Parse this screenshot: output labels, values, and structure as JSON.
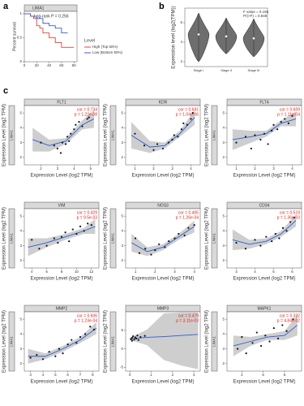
{
  "chart_data": [
    {
      "type": "survival",
      "panel": "a",
      "title": "LIMA1",
      "annotation": "Log-rank P = 0.256",
      "ylabel": "Percent survival",
      "legend_title": "Level",
      "xlim": [
        0,
        85
      ],
      "ylim": [
        0,
        1.05
      ],
      "xticks": [
        0,
        20,
        40,
        60,
        80
      ],
      "yticks": [
        0,
        0.5,
        1
      ],
      "series": [
        {
          "name": "High (Top 50%)",
          "color": "#e0453a",
          "x": [
            0,
            10,
            15,
            20,
            25,
            30,
            40,
            50,
            60,
            80
          ],
          "values": [
            1,
            0.95,
            0.9,
            0.75,
            0.7,
            0.6,
            0.5,
            0.4,
            0.3,
            0.3
          ]
        },
        {
          "name": "Low (Bottom 50%)",
          "color": "#3b5bd6",
          "x": [
            0,
            10,
            20,
            30,
            40,
            50,
            60,
            70
          ],
          "values": [
            1,
            0.95,
            0.9,
            0.8,
            0.75,
            0.7,
            0.6,
            0.6
          ]
        }
      ]
    },
    {
      "type": "violin",
      "panel": "b",
      "ylabel": "Expression level (log2(TPM))",
      "annotation": [
        "F value = 0.165",
        "Pr(>F) = 0.848"
      ],
      "categories": [
        "Stage I",
        "Stage II",
        "Stage III"
      ],
      "values": [
        4.8,
        4.6,
        4.4
      ],
      "min": [
        2.0,
        2.8,
        2.5
      ],
      "max": [
        7.0,
        6.5,
        6.4
      ],
      "color": "#6e6e6e",
      "ylim": [
        1.5,
        7.5
      ],
      "yticks": [
        2,
        4,
        6
      ]
    },
    {
      "type": "scatter",
      "panel": "c",
      "title": "FLT1",
      "strip": "LIMA1",
      "cor": "cor = 0.734",
      "p": "p = 1.22e-08",
      "xlabel": "Expression Level (log2 TPM)",
      "ylabel": "Expression Level (log2 TPM)",
      "xlim": [
        1,
        5.5
      ],
      "ylim": [
        1.5,
        5.5
      ],
      "xticks": [
        2,
        3,
        4,
        5
      ],
      "yticks": [
        2,
        3,
        4,
        5
      ],
      "x": [
        2.0,
        2.8,
        3.0,
        3.2,
        3.3,
        3.5,
        3.6,
        3.7,
        3.8,
        4.0,
        4.1,
        4.3,
        4.5,
        4.8,
        4.9
      ],
      "y": [
        3.0,
        2.8,
        2.6,
        2.3,
        3.0,
        2.9,
        3.4,
        3.1,
        3.6,
        3.9,
        4.2,
        4.4,
        4.1,
        4.6,
        4.7
      ],
      "fit_x": [
        1.5,
        2.5,
        3.5,
        4.5,
        5.2
      ],
      "fit_y": [
        3.2,
        2.8,
        3.1,
        4.2,
        4.6
      ],
      "fit_lower": [
        2.4,
        2.4,
        2.9,
        3.9,
        4.0
      ],
      "fit_upper": [
        4.0,
        3.2,
        3.3,
        4.5,
        5.2
      ]
    },
    {
      "type": "scatter",
      "title": "KDR",
      "strip": "LIMA1",
      "cor": "cor = 0.691",
      "p": "p = 1.04e-06",
      "xlabel": "Expression Level (log2 TPM)",
      "ylabel": "Expression Level (log2 TPM)",
      "xlim": [
        0.5,
        4.5
      ],
      "ylim": [
        1.5,
        5.5
      ],
      "xticks": [
        1,
        2,
        3,
        4
      ],
      "yticks": [
        2,
        3,
        4,
        5
      ],
      "x": [
        1.0,
        1.5,
        2.0,
        2.2,
        2.5,
        2.8,
        3.0,
        3.1,
        3.3,
        3.5,
        3.6,
        3.8,
        4.0,
        4.1
      ],
      "y": [
        3.6,
        2.8,
        2.5,
        2.9,
        2.6,
        3.0,
        3.2,
        3.5,
        3.4,
        3.9,
        4.3,
        4.2,
        4.6,
        5.0
      ],
      "fit_x": [
        0.8,
        1.8,
        2.6,
        3.4,
        4.2
      ],
      "fit_y": [
        3.5,
        2.7,
        2.8,
        3.6,
        4.7
      ],
      "fit_lower": [
        2.6,
        2.3,
        2.6,
        3.4,
        4.2
      ],
      "fit_upper": [
        4.4,
        3.1,
        3.0,
        3.8,
        5.2
      ]
    },
    {
      "type": "scatter",
      "title": "FLT4",
      "strip": "LIMA1",
      "cor": "cor = 0.609",
      "p": "p = 1.11e-04",
      "xlabel": "Expression Level (log2 TPM)",
      "ylabel": "Expression Level (log2 TPM)",
      "xlim": [
        0.5,
        4.5
      ],
      "ylim": [
        1.5,
        5.5
      ],
      "xticks": [
        1,
        2,
        3,
        4
      ],
      "yticks": [
        2,
        3,
        4,
        5
      ],
      "x": [
        1.0,
        1.5,
        1.8,
        2.0,
        2.3,
        2.5,
        2.7,
        2.9,
        3.0,
        3.2,
        3.4,
        3.6,
        3.8,
        4.0
      ],
      "y": [
        3.0,
        3.4,
        2.6,
        3.5,
        3.2,
        3.6,
        2.9,
        3.8,
        4.2,
        3.9,
        4.4,
        4.6,
        4.3,
        4.8
      ],
      "fit_x": [
        0.8,
        1.8,
        2.6,
        3.4,
        4.2
      ],
      "fit_y": [
        3.2,
        3.4,
        3.6,
        4.3,
        4.6
      ],
      "fit_lower": [
        2.5,
        3.0,
        3.4,
        4.1,
        4.1
      ],
      "fit_upper": [
        3.9,
        3.8,
        3.8,
        4.5,
        5.1
      ]
    },
    {
      "type": "scatter",
      "title": "VIM",
      "strip": "LIMA1",
      "cor": "cor = 0.429",
      "p": "p = 9.5e-03",
      "xlabel": "Expression Level (log2 TPM)",
      "ylabel": "Expression Level (log2 TPM)",
      "xlim": [
        3,
        13
      ],
      "ylim": [
        1.5,
        5.5
      ],
      "xticks": [
        4,
        6,
        8,
        10,
        12
      ],
      "yticks": [
        2,
        3,
        4,
        5
      ],
      "x": [
        4,
        5,
        6,
        7,
        7.5,
        8,
        8.5,
        9,
        9.5,
        10,
        10.5,
        11,
        11.5,
        12
      ],
      "y": [
        3.4,
        2.8,
        3.0,
        3.5,
        3.2,
        3.6,
        3.9,
        3.3,
        4.1,
        3.8,
        4.3,
        4.0,
        4.5,
        4.4
      ],
      "fit_x": [
        3.5,
        6,
        8.5,
        11,
        12.5
      ],
      "fit_y": [
        2.9,
        3.2,
        3.6,
        4.0,
        4.3
      ],
      "fit_lower": [
        2.3,
        2.9,
        3.4,
        3.8,
        3.8
      ],
      "fit_upper": [
        3.5,
        3.5,
        3.8,
        4.2,
        4.8
      ]
    },
    {
      "type": "scatter",
      "title": "NOS3",
      "strip": "LIMA1",
      "cor": "cor = 0.405",
      "p": "p = 1.26e-04",
      "xlabel": "Expression Level (log2 TPM)",
      "ylabel": "Expression Level (log2 TPM)",
      "xlim": [
        0.5,
        4.3
      ],
      "ylim": [
        1.5,
        5.5
      ],
      "xticks": [
        1,
        2,
        3,
        4
      ],
      "yticks": [
        2,
        3,
        4,
        5
      ],
      "x": [
        1.0,
        1.2,
        1.5,
        1.8,
        2.0,
        2.2,
        2.5,
        2.7,
        3.0,
        3.2,
        3.5,
        3.7,
        4.0
      ],
      "y": [
        3.5,
        2.5,
        2.8,
        2.4,
        2.7,
        3.1,
        2.9,
        3.3,
        3.5,
        3.8,
        3.7,
        4.2,
        4.4
      ],
      "fit_x": [
        0.8,
        1.6,
        2.4,
        3.2,
        4.0
      ],
      "fit_y": [
        3.2,
        2.6,
        2.9,
        3.6,
        4.3
      ],
      "fit_lower": [
        2.6,
        2.3,
        2.7,
        3.4,
        3.9
      ],
      "fit_upper": [
        3.8,
        2.9,
        3.1,
        3.8,
        4.7
      ]
    },
    {
      "type": "scatter",
      "title": "CD34",
      "strip": "LIMA1",
      "cor": "cor = 0.519",
      "p": "p = 1.36e-03",
      "xlabel": "Expression Level (log2 TPM)",
      "ylabel": "Expression Level (log2 TPM)",
      "xlim": [
        2.5,
        6.5
      ],
      "ylim": [
        1.5,
        5.5
      ],
      "xticks": [
        3,
        4,
        5,
        6
      ],
      "yticks": [
        2,
        3,
        4,
        5
      ],
      "x": [
        3.0,
        3.5,
        4.0,
        4.3,
        4.6,
        4.9,
        5.1,
        5.3,
        5.5,
        5.7,
        5.9,
        6.1
      ],
      "y": [
        3.2,
        2.8,
        3.4,
        3.0,
        3.6,
        3.3,
        3.8,
        3.5,
        4.2,
        4.0,
        4.6,
        4.9
      ],
      "fit_x": [
        2.8,
        3.7,
        4.6,
        5.4,
        6.2
      ],
      "fit_y": [
        3.4,
        3.1,
        3.3,
        3.8,
        4.7
      ],
      "fit_lower": [
        2.7,
        2.8,
        3.1,
        3.6,
        4.3
      ],
      "fit_upper": [
        4.1,
        3.4,
        3.5,
        4.0,
        5.1
      ]
    },
    {
      "type": "scatter",
      "title": "MMP2",
      "strip": "LIMA1",
      "cor": "cor = 0.606",
      "p": "p = 1.23e-04",
      "xlabel": "Expression Level (log2 TPM)",
      "ylabel": "Expression Level (log2 TPM)",
      "xlim": [
        2.5,
        8.5
      ],
      "ylim": [
        1.5,
        5.5
      ],
      "xticks": [
        3,
        4,
        5,
        6,
        7,
        8
      ],
      "yticks": [
        2,
        3,
        4,
        5
      ],
      "x": [
        3.0,
        3.5,
        4.0,
        4.5,
        5.0,
        5.3,
        5.6,
        6.0,
        6.3,
        6.7,
        7.0,
        7.4,
        7.8,
        8.1
      ],
      "y": [
        2.4,
        2.6,
        2.3,
        2.8,
        2.5,
        3.0,
        2.7,
        3.3,
        3.6,
        3.4,
        3.8,
        4.0,
        4.5,
        4.3
      ],
      "fit_x": [
        2.8,
        4.2,
        5.6,
        7.0,
        8.3
      ],
      "fit_y": [
        2.5,
        2.5,
        3.0,
        3.6,
        4.4
      ],
      "fit_lower": [
        2.0,
        2.3,
        2.8,
        3.4,
        4.0
      ],
      "fit_upper": [
        3.0,
        2.7,
        3.2,
        3.8,
        4.8
      ]
    },
    {
      "type": "scatter",
      "title": "MMP3",
      "strip": "LIMA1",
      "cor": "cor = 0.479",
      "p": "p = 3.11e-03",
      "xlabel": "Expression Level (log2 TPM)",
      "ylabel": "Expression Level (log2 TPM)",
      "xlim": [
        -0.2,
        3.3
      ],
      "ylim": [
        -6,
        10
      ],
      "xticks": [
        0,
        1,
        2,
        3
      ],
      "yticks": [
        -5,
        0,
        5
      ],
      "x": [
        0.05,
        0.1,
        0.1,
        0.15,
        0.2,
        0.25,
        0.3,
        0.35,
        0.4,
        0.5,
        0.7
      ],
      "y": [
        2.6,
        3.0,
        2.2,
        3.4,
        2.5,
        3.1,
        2.8,
        3.6,
        2.4,
        3.2,
        3.5
      ],
      "fit_x": [
        0,
        0.8,
        1.6,
        2.4,
        3.2
      ],
      "fit_y": [
        2.7,
        3.1,
        3.3,
        3.6,
        3.9
      ],
      "fit_lower": [
        2.4,
        1.0,
        -3.0,
        -4.5,
        -5.5
      ],
      "fit_upper": [
        3.0,
        5.2,
        9.6,
        9.8,
        9.8
      ]
    },
    {
      "type": "scatter",
      "title": "MAPK1",
      "strip": "LIMA1",
      "cor": "cor = 0.332",
      "p": "p = 4.84e-02",
      "xlabel": "Expression Level (log2 TPM)",
      "ylabel": "Expression Level (log2 TPM)",
      "xlim": [
        3.3,
        6.8
      ],
      "ylim": [
        1.5,
        5.5
      ],
      "xticks": [
        4,
        5,
        6
      ],
      "yticks": [
        2,
        3,
        4,
        5
      ],
      "x": [
        3.8,
        4.0,
        4.2,
        4.5,
        4.7,
        4.9,
        5.1,
        5.3,
        5.5,
        5.7,
        5.9,
        6.1,
        6.4
      ],
      "y": [
        3.0,
        3.8,
        2.7,
        3.4,
        4.1,
        3.2,
        3.9,
        3.5,
        4.4,
        3.7,
        4.6,
        4.2,
        5.0
      ],
      "fit_x": [
        3.6,
        4.4,
        5.2,
        6.0,
        6.6
      ],
      "fit_y": [
        3.2,
        3.5,
        3.8,
        3.9,
        4.6
      ],
      "fit_lower": [
        2.5,
        3.2,
        3.6,
        3.6,
        3.9
      ],
      "fit_upper": [
        3.9,
        3.8,
        4.0,
        4.2,
        5.3
      ]
    }
  ]
}
